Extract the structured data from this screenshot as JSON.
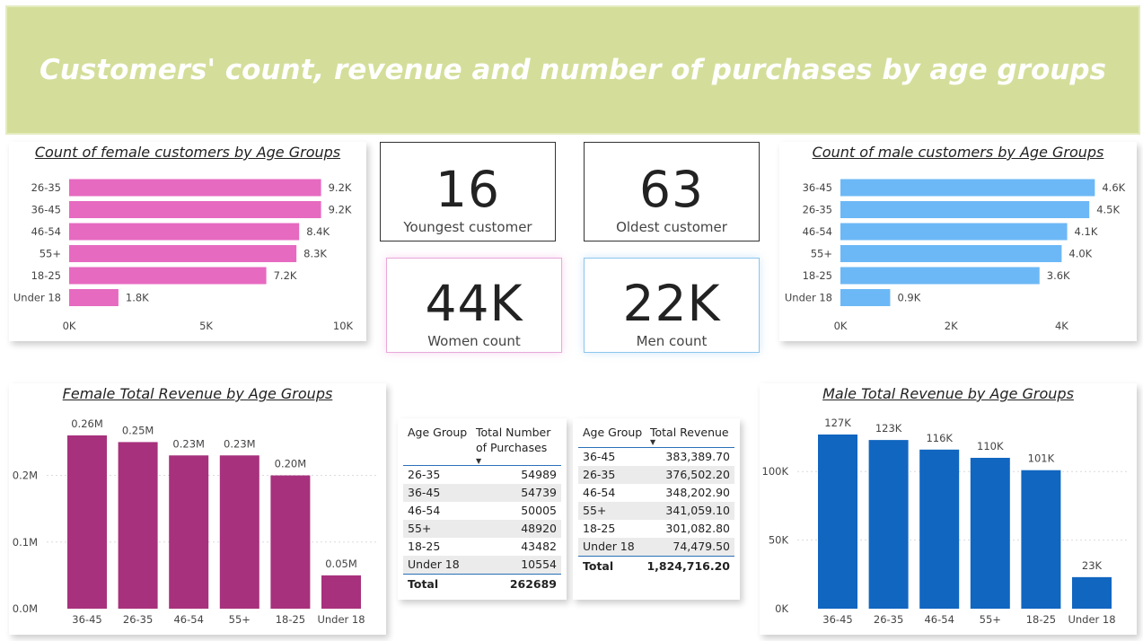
{
  "header": {
    "title": "Customers' count, revenue and number of purchases by age groups"
  },
  "kpis": {
    "youngest": {
      "value": "16",
      "label": "Youngest customer"
    },
    "oldest": {
      "value": "63",
      "label": "Oldest customer"
    },
    "women": {
      "value": "44K",
      "label": "Women count"
    },
    "men": {
      "value": "22K",
      "label": "Men count"
    }
  },
  "colors": {
    "female_count": "#e66ac0",
    "male_count": "#6cb8f6",
    "female_revenue": "#a7317c",
    "male_revenue": "#1166c0",
    "table_accent": "#2a70b8"
  },
  "chart_data": [
    {
      "id": "female-count",
      "type": "bar",
      "orientation": "horizontal",
      "title": "Count of female customers by Age Groups",
      "categories": [
        "26-35",
        "36-45",
        "46-54",
        "55+",
        "18-25",
        "Under 18"
      ],
      "values": [
        9200,
        9200,
        8400,
        8300,
        7200,
        1800
      ],
      "data_labels": [
        "9.2K",
        "9.2K",
        "8.4K",
        "8.3K",
        "7.2K",
        "1.8K"
      ],
      "xlim": [
        0,
        10000
      ],
      "ticks": [
        0,
        5000,
        10000
      ],
      "tick_labels": [
        "0K",
        "5K",
        "10K"
      ],
      "grid": false
    },
    {
      "id": "male-count",
      "type": "bar",
      "orientation": "horizontal",
      "title": "Count of male customers by Age Groups",
      "categories": [
        "36-45",
        "26-35",
        "46-54",
        "55+",
        "18-25",
        "Under 18"
      ],
      "values": [
        4600,
        4500,
        4100,
        4000,
        3600,
        900
      ],
      "data_labels": [
        "4.6K",
        "4.5K",
        "4.1K",
        "4.0K",
        "3.6K",
        "0.9K"
      ],
      "xlim": [
        0,
        5000
      ],
      "ticks": [
        0,
        2000,
        4000
      ],
      "tick_labels": [
        "0K",
        "2K",
        "4K"
      ],
      "grid": false
    },
    {
      "id": "female-revenue",
      "type": "bar",
      "orientation": "vertical",
      "title": "Female Total Revenue by Age Groups",
      "categories": [
        "36-45",
        "26-35",
        "46-54",
        "55+",
        "18-25",
        "Under 18"
      ],
      "values": [
        260000,
        250000,
        230000,
        230000,
        200000,
        50000
      ],
      "data_labels": [
        "0.26M",
        "0.25M",
        "0.23M",
        "0.23M",
        "0.20M",
        "0.05M"
      ],
      "ylim": [
        0,
        260000
      ],
      "ticks": [
        0,
        100000,
        200000
      ],
      "tick_labels": [
        "0.0M",
        "0.1M",
        "0.2M"
      ],
      "grid": true
    },
    {
      "id": "male-revenue",
      "type": "bar",
      "orientation": "vertical",
      "title": "Male Total Revenue by Age Groups",
      "categories": [
        "36-45",
        "26-35",
        "46-54",
        "55+",
        "18-25",
        "Under 18"
      ],
      "values": [
        127000,
        123000,
        116000,
        110000,
        101000,
        23000
      ],
      "data_labels": [
        "127K",
        "123K",
        "116K",
        "110K",
        "101K",
        "23K"
      ],
      "ylim": [
        0,
        127000
      ],
      "ticks": [
        0,
        50000,
        100000
      ],
      "tick_labels": [
        "0K",
        "50K",
        "100K"
      ],
      "grid": true
    }
  ],
  "purchases_table": {
    "headers": [
      "Age Group",
      "Total Number",
      "of Purchases"
    ],
    "rows": [
      {
        "group": "26-35",
        "value": "54989"
      },
      {
        "group": "36-45",
        "value": "54739"
      },
      {
        "group": "46-54",
        "value": "50005"
      },
      {
        "group": "55+",
        "value": "48920"
      },
      {
        "group": "18-25",
        "value": "43482"
      },
      {
        "group": "Under 18",
        "value": "10554"
      }
    ],
    "total_label": "Total",
    "total_value": "262689"
  },
  "revenue_table": {
    "headers": [
      "Age Group",
      "Total Revenue"
    ],
    "rows": [
      {
        "group": "36-45",
        "value": "383,389.70"
      },
      {
        "group": "26-35",
        "value": "376,502.20"
      },
      {
        "group": "46-54",
        "value": "348,202.90"
      },
      {
        "group": "55+",
        "value": "341,059.10"
      },
      {
        "group": "18-25",
        "value": "301,082.80"
      },
      {
        "group": "Under 18",
        "value": "74,479.50"
      }
    ],
    "total_label": "Total",
    "total_value": "1,824,716.20"
  }
}
